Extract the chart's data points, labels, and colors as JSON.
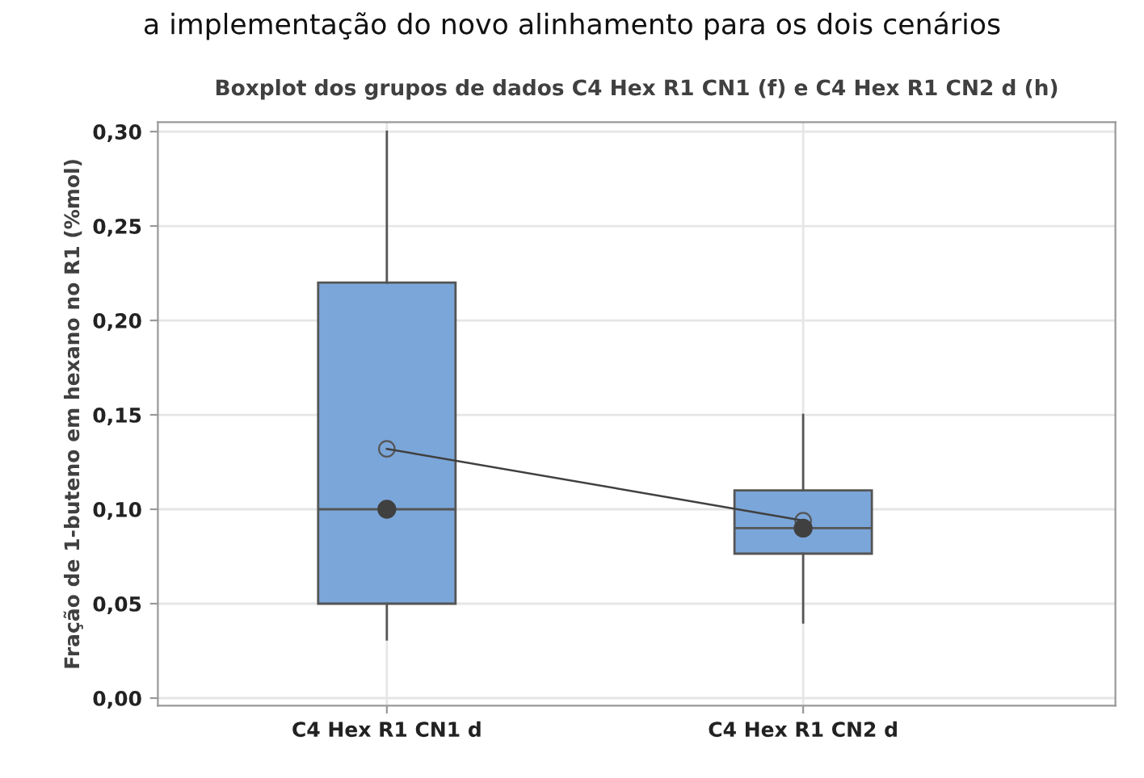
{
  "chart_data": {
    "type": "box",
    "title": "Boxplot dos grupos de dados C4 Hex R1 CN1 (f) e C4 Hex R1 CN2 d (h)",
    "ylabel": "Fração de 1-buteno em hexano no R1 (%mol)",
    "annotations": [
      "a implementação do novo alinhamento para os dois cenários"
    ],
    "categories": [
      "C4 Hex R1 CN1 d",
      "C4 Hex R1 CN2 d"
    ],
    "color": "#7ba6d9",
    "boxes": [
      {
        "low": 0.031,
        "q1": 0.05,
        "median": 0.1,
        "q3": 0.22,
        "high": 0.3,
        "mean": 0.132
      },
      {
        "low": 0.04,
        "q1": 0.0765,
        "median": 0.09,
        "q3": 0.11,
        "high": 0.15,
        "mean": 0.094
      }
    ],
    "series": [
      {
        "type": "line",
        "color": "#404040",
        "marker": "none",
        "values": [
          0.132,
          0.094
        ]
      },
      {
        "type": "scatter",
        "color": "#404040",
        "marker": "circle",
        "values": [
          0.1,
          0.09
        ]
      }
    ],
    "ylim": [
      -0.004,
      0.305
    ],
    "yticks": [
      {
        "value": 0,
        "label": "0,00"
      },
      {
        "value": 0.05,
        "label": "0,05"
      },
      {
        "value": 0.1,
        "label": "0,10"
      },
      {
        "value": 0.15,
        "label": "0,15"
      },
      {
        "value": 0.2,
        "label": "0,20"
      },
      {
        "value": 0.25,
        "label": "0,25"
      },
      {
        "value": 0.3,
        "label": "0,30"
      }
    ],
    "grid": true
  }
}
